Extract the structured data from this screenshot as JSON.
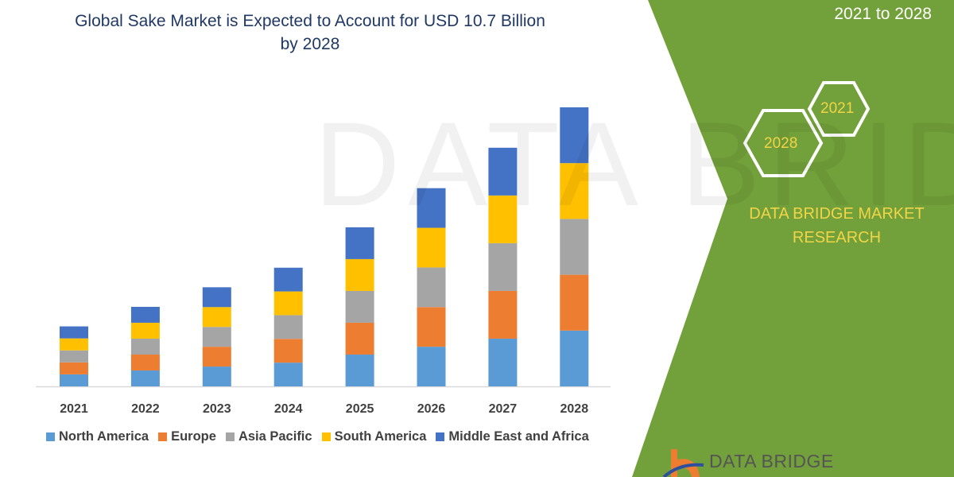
{
  "chart_data": {
    "type": "bar",
    "stacked": true,
    "title": "Global Sake Market is Expected to Account for USD 10.7 Billion by 2028",
    "categories": [
      "2021",
      "2022",
      "2023",
      "2024",
      "2025",
      "2026",
      "2027",
      "2028"
    ],
    "series": [
      {
        "name": "North America",
        "color": "#5b9bd5",
        "values": [
          0.46,
          0.61,
          0.76,
          0.91,
          1.22,
          1.52,
          1.83,
          2.14
        ]
      },
      {
        "name": "Europe",
        "color": "#ed7d31",
        "values": [
          0.46,
          0.61,
          0.76,
          0.91,
          1.22,
          1.52,
          1.83,
          2.14
        ]
      },
      {
        "name": "Asia Pacific",
        "color": "#a5a5a5",
        "values": [
          0.46,
          0.61,
          0.76,
          0.91,
          1.22,
          1.52,
          1.83,
          2.14
        ]
      },
      {
        "name": "South America",
        "color": "#ffc000",
        "values": [
          0.46,
          0.61,
          0.76,
          0.91,
          1.22,
          1.52,
          1.83,
          2.14
        ]
      },
      {
        "name": "Middle East and Africa",
        "color": "#4472c4",
        "values": [
          0.46,
          0.61,
          0.76,
          0.91,
          1.22,
          1.52,
          1.83,
          2.14
        ]
      }
    ],
    "ylim": [
      0,
      10.7
    ],
    "xlabel": "",
    "ylabel": "",
    "grid": false,
    "legend": "bottom"
  },
  "title_line1": "Global Sake Market is Expected to Account for USD 10.7 Billion",
  "title_line2": "by 2028",
  "side": {
    "period": "2021 to 2028",
    "hex_large": "2028",
    "hex_small": "2021",
    "brand_line1": "DATA BRIDGE MARKET",
    "brand_line2": "RESEARCH",
    "accent": "#72a03a",
    "logo_text": "DATA BRIDGE"
  },
  "watermark": "DATA BRIDGE"
}
